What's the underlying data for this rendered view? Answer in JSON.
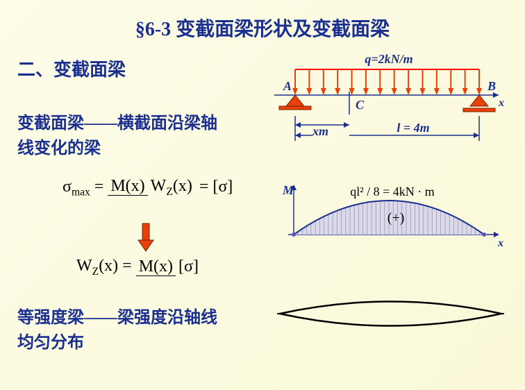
{
  "title": "§6-3  变截面梁形状及变截面梁",
  "subtitle": "二、变截面梁",
  "definition1_l1": "变截面梁——横截面沿梁轴",
  "definition1_l2": "线变化的梁",
  "definition2_l1": "等强度梁——梁强度沿轴线",
  "definition2_l2": "均匀分布",
  "formula1": {
    "sigma": "σ",
    "max": "max",
    "eq": " = ",
    "Mx": "M(x)",
    "Wzx": "W",
    "z": "Z",
    "x": "(x)",
    "result": " = [σ]"
  },
  "formula2": {
    "Wz": "W",
    "z": "Z",
    "x": "(x) = ",
    "Mx": "M(x)",
    "sigma": "[σ]"
  },
  "beam": {
    "load_label": "q=2kN/m",
    "A": "A",
    "B": "B",
    "x": "x",
    "C": "C",
    "xm": "x",
    "m": "m",
    "span_label": "l = 4m",
    "arrow_count": 14,
    "arrow_color": "#e8420a",
    "support_color": "#e8420a",
    "line_color": "#1a2f8f",
    "load_bar_color": "#ff0000"
  },
  "moment": {
    "M": "M",
    "x": "x",
    "label": "ql² / 8 = 4kN · m",
    "plus": "(+)",
    "curve_fill": "#dcdaea",
    "curve_stroke": "#1a2f8f",
    "hatch_color": "#888"
  },
  "lens": {
    "stroke": "#000",
    "fill": "none"
  }
}
